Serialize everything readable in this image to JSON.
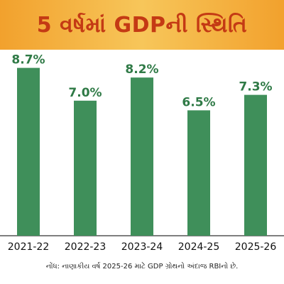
{
  "header": {
    "title": "5 વર્ષમાં GDPની સ્થિતિ"
  },
  "chart_data": {
    "type": "bar",
    "title": "5 વર્ષમાં GDPની સ્થિતિ",
    "categories": [
      "2021-22",
      "2022-23",
      "2023-24",
      "2024-25",
      "2025-26"
    ],
    "values": [
      8.7,
      7.0,
      8.2,
      6.5,
      7.3
    ],
    "value_labels": [
      "8.7%",
      "7.0%",
      "8.2%",
      "6.5%",
      "7.3%"
    ],
    "ylim": [
      0,
      9.2
    ],
    "xlabel": "",
    "ylabel": "",
    "grid": false,
    "bar_color": "#3f8f5a",
    "label_color": "#2f7a46"
  },
  "footnote": "નોંધ: નાણાકીય વર્ષ 2025-26 માટે GDP ગ્રોથનો અંદાજ RBIનો છે."
}
